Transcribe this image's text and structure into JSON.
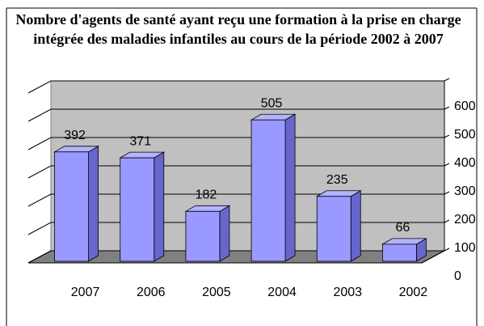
{
  "chart_data": {
    "type": "bar",
    "title": "Nombre d'agents de santé ayant reçu une formation à la prise en charge intégrée des maladies infantiles au cours de la période 2002 à 2007",
    "categories": [
      "2007",
      "2006",
      "2005",
      "2004",
      "2003",
      "2002"
    ],
    "values": [
      392,
      371,
      182,
      505,
      235,
      66
    ],
    "color": "#9999ff",
    "ylim": [
      0,
      600
    ],
    "yticks": [
      0,
      100,
      200,
      300,
      400,
      500,
      600
    ],
    "grid": true
  }
}
